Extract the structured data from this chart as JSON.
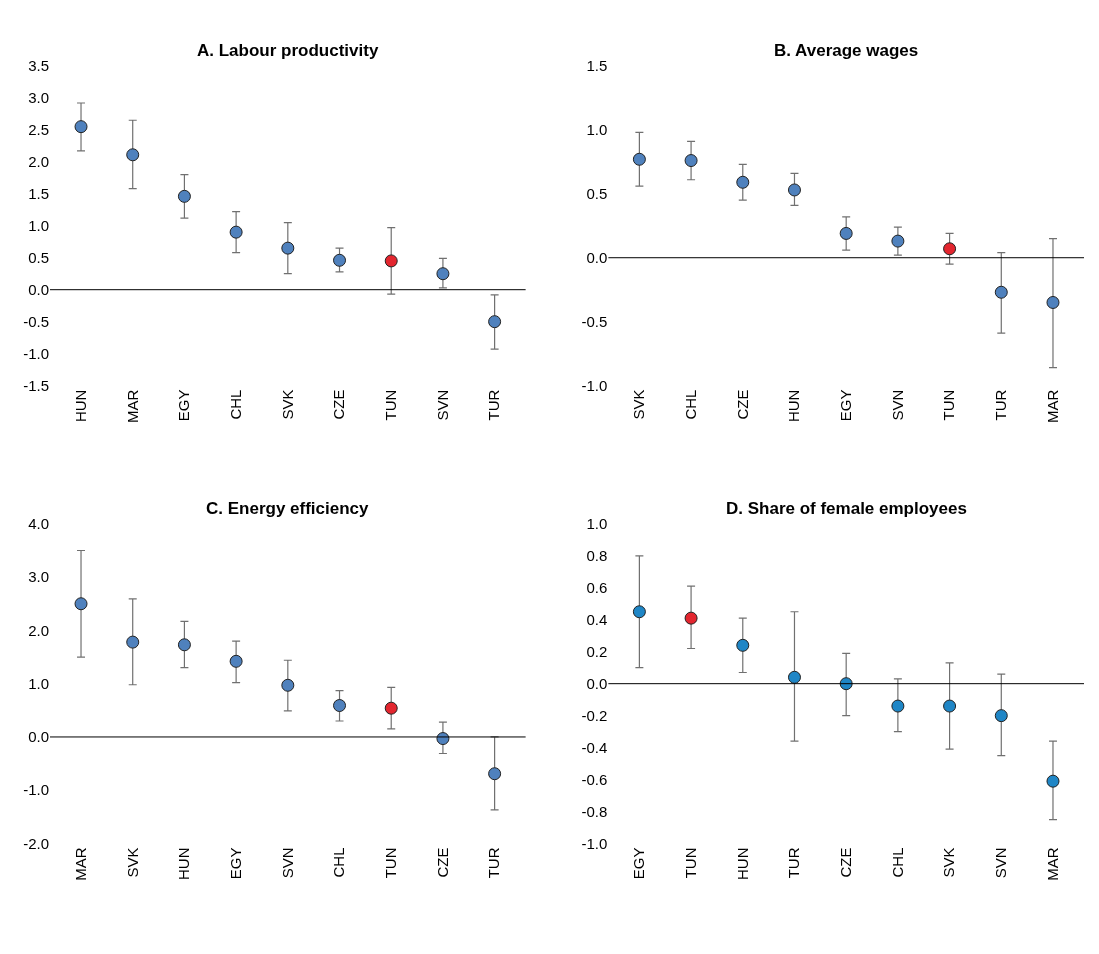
{
  "chart_data": [
    {
      "type": "scatter",
      "title": "A. Labour productivity",
      "categories": [
        "HUN",
        "MAR",
        "EGY",
        "CHL",
        "SVK",
        "CZE",
        "TUN",
        "SVN",
        "TUR"
      ],
      "values": [
        2.55,
        2.11,
        1.46,
        0.9,
        0.65,
        0.46,
        0.45,
        0.25,
        -0.5
      ],
      "errors": [
        [
          2.17,
          2.92
        ],
        [
          1.58,
          2.65
        ],
        [
          1.12,
          1.8
        ],
        [
          0.58,
          1.22
        ],
        [
          0.25,
          1.05
        ],
        [
          0.28,
          0.65
        ],
        [
          -0.07,
          0.97
        ],
        [
          0.03,
          0.49
        ],
        [
          -0.93,
          -0.08
        ]
      ],
      "colors": [
        "#4f81bd",
        "#4f81bd",
        "#4f81bd",
        "#4f81bd",
        "#4f81bd",
        "#4f81bd",
        "#e3262f",
        "#4f81bd",
        "#4f81bd"
      ],
      "ylim": [
        -1.5,
        3.5
      ],
      "yticks": [
        -1.5,
        {
          "value": -1,
          "label": "-1.0"
        },
        -0.5,
        {
          "value": 0,
          "label": "0.0"
        },
        0.5,
        {
          "value": 1,
          "label": "1.0"
        },
        1.5,
        {
          "value": 2,
          "label": "2.0"
        },
        2.5,
        {
          "value": 3,
          "label": "3.0"
        },
        3.5
      ],
      "ref_lines": [
        {
          "axis": "y",
          "value": 0,
          "label": null,
          "color": "#000000"
        }
      ],
      "marker": "circle"
    },
    {
      "type": "scatter",
      "title": "B. Average wages",
      "categories": [
        "SVK",
        "CHL",
        "CZE",
        "HUN",
        "EGY",
        "SVN",
        "TUN",
        "TUR",
        "MAR"
      ],
      "values": [
        0.77,
        0.76,
        0.59,
        0.53,
        0.19,
        0.13,
        0.07,
        -0.27,
        -0.35
      ],
      "errors": [
        [
          0.56,
          0.98
        ],
        [
          0.61,
          0.91
        ],
        [
          0.45,
          0.73
        ],
        [
          0.41,
          0.66
        ],
        [
          0.06,
          0.32
        ],
        [
          0.02,
          0.24
        ],
        [
          -0.05,
          0.19
        ],
        [
          -0.59,
          0.04
        ],
        [
          -0.86,
          0.15
        ]
      ],
      "colors": [
        "#4f81bd",
        "#4f81bd",
        "#4f81bd",
        "#4f81bd",
        "#4f81bd",
        "#4f81bd",
        "#e3262f",
        "#4f81bd",
        "#4f81bd"
      ],
      "ylim": [
        -1.0,
        1.5
      ],
      "yticks": [
        {
          "value": -1,
          "label": "-1.0"
        },
        -0.5,
        {
          "value": 0,
          "label": "0.0"
        },
        0.5,
        {
          "value": 1,
          "label": "1.0"
        },
        1.5
      ],
      "ref_lines": [
        {
          "axis": "y",
          "value": 0,
          "label": null,
          "color": "#000000"
        }
      ],
      "marker": "circle"
    },
    {
      "type": "scatter",
      "title": "C. Energy efficiency",
      "categories": [
        "MAR",
        "SVK",
        "HUN",
        "EGY",
        "SVN",
        "CHL",
        "TUN",
        "CZE",
        "TUR"
      ],
      "values": [
        2.5,
        1.78,
        1.73,
        1.42,
        0.97,
        0.59,
        0.54,
        -0.03,
        -0.69
      ],
      "errors": [
        [
          1.5,
          3.5
        ],
        [
          0.98,
          2.59
        ],
        [
          1.3,
          2.17
        ],
        [
          1.02,
          1.8
        ],
        [
          0.49,
          1.44
        ],
        [
          0.3,
          0.87
        ],
        [
          0.15,
          0.93
        ],
        [
          -0.31,
          0.28
        ],
        [
          -1.37,
          0.0
        ]
      ],
      "colors": [
        "#4f81bd",
        "#4f81bd",
        "#4f81bd",
        "#4f81bd",
        "#4f81bd",
        "#4f81bd",
        "#e3262f",
        "#4f81bd",
        "#4f81bd"
      ],
      "ylim": [
        -2.0,
        4.0
      ],
      "yticks": [
        {
          "value": -2,
          "label": "-2.0"
        },
        {
          "value": -1,
          "label": "-1.0"
        },
        {
          "value": 0,
          "label": "0.0"
        },
        {
          "value": 1,
          "label": "1.0"
        },
        {
          "value": 2,
          "label": "2.0"
        },
        {
          "value": 3,
          "label": "3.0"
        },
        {
          "value": 4,
          "label": "4.0"
        }
      ],
      "ref_lines": [
        {
          "axis": "y",
          "value": 0,
          "label": null,
          "color": "#000000"
        }
      ],
      "marker": "circle"
    },
    {
      "type": "scatter",
      "title": "D. Share of female employees",
      "categories": [
        "EGY",
        "TUN",
        "HUN",
        "TUR",
        "CZE",
        "CHL",
        "SVK",
        "SVN",
        "MAR"
      ],
      "values": [
        0.45,
        0.41,
        0.24,
        0.04,
        0.0,
        -0.14,
        -0.14,
        -0.2,
        -0.61
      ],
      "errors": [
        [
          0.1,
          0.8
        ],
        [
          0.22,
          0.61
        ],
        [
          0.07,
          0.41
        ],
        [
          -0.36,
          0.45
        ],
        [
          -0.2,
          0.19
        ],
        [
          -0.3,
          0.03
        ],
        [
          -0.41,
          0.13
        ],
        [
          -0.45,
          0.06
        ],
        [
          -0.85,
          -0.36
        ]
      ],
      "colors": [
        "#1f86c6",
        "#e3262f",
        "#1f86c6",
        "#1f86c6",
        "#1f86c6",
        "#1f86c6",
        "#1f86c6",
        "#1f86c6",
        "#1f86c6"
      ],
      "ylim": [
        -1.0,
        1.0
      ],
      "yticks": [
        {
          "value": -1,
          "label": "-1.0"
        },
        -0.8,
        -0.6,
        -0.4,
        -0.2,
        {
          "value": 0,
          "label": "0.0"
        },
        0.2,
        0.4,
        0.6,
        0.8,
        {
          "value": 1,
          "label": "1.0"
        }
      ],
      "ref_lines": [
        {
          "axis": "y",
          "value": 0,
          "label": null,
          "color": "#000000"
        }
      ],
      "marker": "circle"
    }
  ]
}
